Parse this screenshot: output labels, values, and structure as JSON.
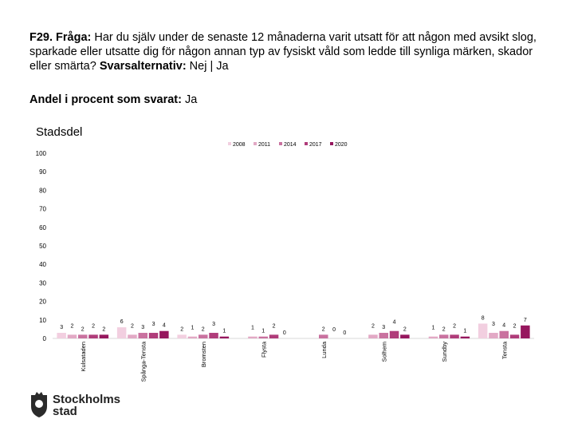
{
  "question": {
    "label": "F29. Fråga:",
    "text": " Har du själv under de senaste 12 månaderna varit utsatt för att någon med avsikt slog, sparkade eller utsatte dig för någon annan typ av fysiskt våld som ledde till synliga märken, skador eller smärta?",
    "answer_label": "Svarsalternativ:",
    "answer_text": " Nej | Ja"
  },
  "subtitle": {
    "label": "Andel i procent som svarat:",
    "text": " Ja"
  },
  "logo": {
    "line1": "Stockholms",
    "line2": "stad"
  },
  "chart_data": {
    "type": "bar",
    "title": "Stadsdel",
    "categories": [
      "Kulsataden",
      "Spånga-Tensta",
      "Bromsten",
      "Flysta",
      "Lunda",
      "Solhem",
      "Sundby",
      "Tensta"
    ],
    "series": [
      {
        "name": "2008",
        "color": "#f2cfe0",
        "values": [
          3,
          6,
          2,
          null,
          null,
          null,
          null,
          8
        ]
      },
      {
        "name": "2011",
        "color": "#e2a9c5",
        "values": [
          2,
          2,
          1,
          1,
          null,
          2,
          1,
          3
        ]
      },
      {
        "name": "2014",
        "color": "#c9719f",
        "values": [
          2,
          3,
          2,
          1,
          2,
          3,
          2,
          4
        ]
      },
      {
        "name": "2017",
        "color": "#b03c7a",
        "values": [
          2,
          3,
          3,
          2,
          0,
          4,
          2,
          2
        ]
      },
      {
        "name": "2020",
        "color": "#96175e",
        "values": [
          2,
          4,
          1,
          0,
          0,
          2,
          1,
          7
        ]
      }
    ],
    "ylim": [
      0,
      100
    ],
    "yticks": [
      0,
      10,
      20,
      30,
      40,
      50,
      60,
      70,
      80,
      90,
      100
    ],
    "grid": false,
    "legend": "top-center"
  }
}
